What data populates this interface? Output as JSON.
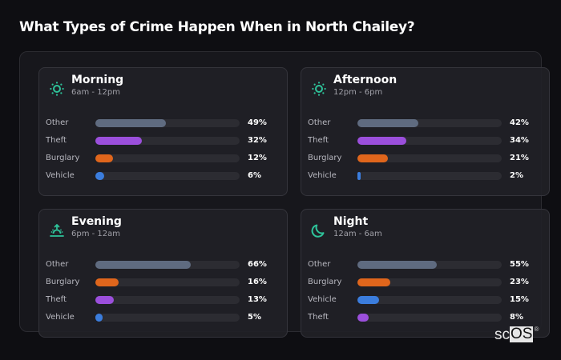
{
  "title": "What Types of Crime Happen When in North Chailey?",
  "colors": {
    "Other": "#5f6b80",
    "Theft": "#9b4fdc",
    "Burglary": "#e0661c",
    "Vehicle": "#3b7ddd",
    "icon_accent": "#2ec39a"
  },
  "cards": [
    {
      "name": "Morning",
      "range": "6am - 12pm",
      "icon": "sun-icon",
      "rows": [
        {
          "label": "Other",
          "value": 49,
          "text": "49%"
        },
        {
          "label": "Theft",
          "value": 32,
          "text": "32%"
        },
        {
          "label": "Burglary",
          "value": 12,
          "text": "12%"
        },
        {
          "label": "Vehicle",
          "value": 6,
          "text": "6%"
        }
      ]
    },
    {
      "name": "Afternoon",
      "range": "12pm - 6pm",
      "icon": "sun-icon",
      "rows": [
        {
          "label": "Other",
          "value": 42,
          "text": "42%"
        },
        {
          "label": "Theft",
          "value": 34,
          "text": "34%"
        },
        {
          "label": "Burglary",
          "value": 21,
          "text": "21%"
        },
        {
          "label": "Vehicle",
          "value": 2,
          "text": "2%"
        }
      ]
    },
    {
      "name": "Evening",
      "range": "6pm - 12am",
      "icon": "sunset-icon",
      "rows": [
        {
          "label": "Other",
          "value": 66,
          "text": "66%"
        },
        {
          "label": "Burglary",
          "value": 16,
          "text": "16%"
        },
        {
          "label": "Theft",
          "value": 13,
          "text": "13%"
        },
        {
          "label": "Vehicle",
          "value": 5,
          "text": "5%"
        }
      ]
    },
    {
      "name": "Night",
      "range": "12am - 6am",
      "icon": "moon-icon",
      "rows": [
        {
          "label": "Other",
          "value": 55,
          "text": "55%"
        },
        {
          "label": "Burglary",
          "value": 23,
          "text": "23%"
        },
        {
          "label": "Vehicle",
          "value": 15,
          "text": "15%"
        },
        {
          "label": "Theft",
          "value": 8,
          "text": "8%"
        }
      ]
    }
  ],
  "logo": {
    "sc": "sc",
    "os": "OS",
    "reg": "®"
  },
  "chart_data": [
    {
      "type": "bar",
      "title": "Morning",
      "subtitle": "6am - 12pm",
      "categories": [
        "Other",
        "Theft",
        "Burglary",
        "Vehicle"
      ],
      "values": [
        49,
        32,
        12,
        6
      ],
      "unit": "%",
      "xlim": [
        0,
        100
      ],
      "orientation": "horizontal"
    },
    {
      "type": "bar",
      "title": "Afternoon",
      "subtitle": "12pm - 6pm",
      "categories": [
        "Other",
        "Theft",
        "Burglary",
        "Vehicle"
      ],
      "values": [
        42,
        34,
        21,
        2
      ],
      "unit": "%",
      "xlim": [
        0,
        100
      ],
      "orientation": "horizontal"
    },
    {
      "type": "bar",
      "title": "Evening",
      "subtitle": "6pm - 12am",
      "categories": [
        "Other",
        "Burglary",
        "Theft",
        "Vehicle"
      ],
      "values": [
        66,
        16,
        13,
        5
      ],
      "unit": "%",
      "xlim": [
        0,
        100
      ],
      "orientation": "horizontal"
    },
    {
      "type": "bar",
      "title": "Night",
      "subtitle": "12am - 6am",
      "categories": [
        "Other",
        "Burglary",
        "Vehicle",
        "Theft"
      ],
      "values": [
        55,
        23,
        15,
        8
      ],
      "unit": "%",
      "xlim": [
        0,
        100
      ],
      "orientation": "horizontal"
    }
  ]
}
